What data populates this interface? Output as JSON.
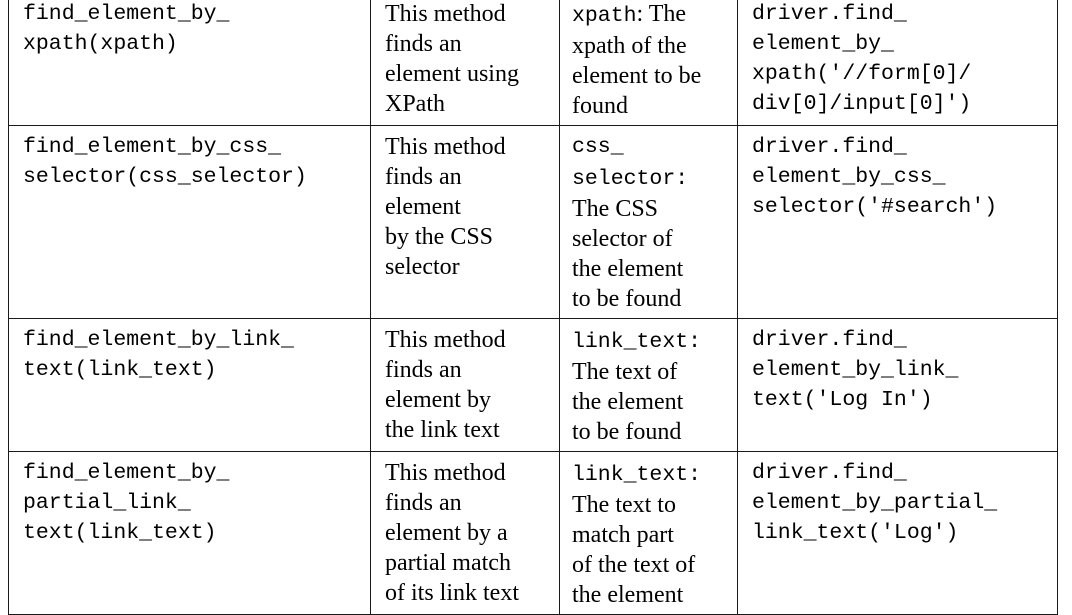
{
  "rows": [
    {
      "method": [
        "find_element_by_",
        "xpath(xpath)"
      ],
      "description": [
        "This method",
        "finds an",
        "element using",
        "XPath"
      ],
      "argument": [
        {
          "mono": "xpath",
          "text": ": The"
        },
        {
          "mono": "",
          "text": "xpath of the"
        },
        {
          "mono": "",
          "text": "element to be"
        },
        {
          "mono": "",
          "text": "found"
        }
      ],
      "example": [
        "driver.find_",
        "element_by_",
        "xpath('//form[0]/",
        "div[0]/input[0]')"
      ]
    },
    {
      "method": [
        "find_element_by_css_",
        "selector(css_selector)"
      ],
      "description": [
        "This method",
        "finds an",
        "element",
        "by the CSS",
        "selector"
      ],
      "argument": [
        {
          "mono": "css_",
          "text": ""
        },
        {
          "mono": "selector",
          "text": ":"
        },
        {
          "mono": "",
          "text": "The CSS"
        },
        {
          "mono": "",
          "text": "selector of"
        },
        {
          "mono": "",
          "text": "the element"
        },
        {
          "mono": "",
          "text": "to be found"
        }
      ],
      "example": [
        "driver.find_",
        "element_by_css_",
        "selector('#search')"
      ]
    },
    {
      "method": [
        "find_element_by_link_",
        "text(link_text)"
      ],
      "description": [
        "This method",
        "finds an",
        "element by",
        "the link text"
      ],
      "argument": [
        {
          "mono": "link_text",
          "text": ":"
        },
        {
          "mono": "",
          "text": "The text of"
        },
        {
          "mono": "",
          "text": "the element"
        },
        {
          "mono": "",
          "text": "to be found"
        }
      ],
      "example": [
        "driver.find_",
        "element_by_link_",
        "text('Log In')"
      ]
    },
    {
      "method": [
        "find_element_by_",
        "partial_link_",
        "text(link_text)"
      ],
      "description": [
        "This method",
        "finds an",
        "element by a",
        "partial match",
        "of its link text"
      ],
      "argument": [
        {
          "mono": "link_text",
          "text": ":"
        },
        {
          "mono": "",
          "text": "The text to"
        },
        {
          "mono": "",
          "text": "match part"
        },
        {
          "mono": "",
          "text": "of the text of"
        },
        {
          "mono": "",
          "text": "the element"
        }
      ],
      "example": [
        "driver.find_",
        "element_by_partial_",
        "link_text('Log')"
      ]
    }
  ]
}
